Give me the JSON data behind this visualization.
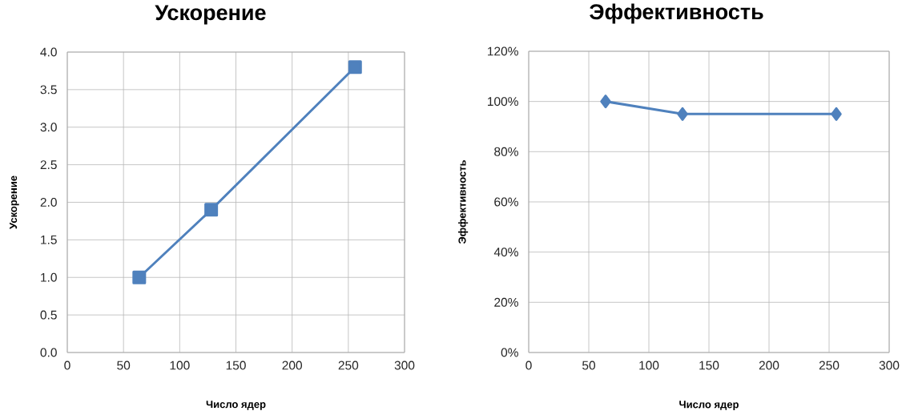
{
  "chart_data": [
    {
      "type": "line",
      "title": "Ускорение",
      "xlabel": "Число ядер",
      "ylabel": "Ускорение",
      "x": [
        64,
        128,
        256
      ],
      "series": [
        {
          "color": "#4f81bd",
          "values": [
            1.0,
            1.9,
            3.8
          ]
        }
      ],
      "xlim": [
        0,
        300
      ],
      "xticks": [
        0,
        50,
        100,
        150,
        200,
        250,
        300
      ],
      "ylim": [
        0,
        4
      ],
      "yticks": [
        {
          "value": 0,
          "label": "0.0"
        },
        {
          "value": 0.5,
          "label": "0.5"
        },
        {
          "value": 1,
          "label": "1.0"
        },
        {
          "value": 1.5,
          "label": "1.5"
        },
        {
          "value": 2,
          "label": "2.0"
        },
        {
          "value": 2.5,
          "label": "2.5"
        },
        {
          "value": 3,
          "label": "3.0"
        },
        {
          "value": 3.5,
          "label": "3.5"
        },
        {
          "value": 4,
          "label": "4.0"
        }
      ],
      "grid": true,
      "marker": "square",
      "line_style": "solid"
    },
    {
      "type": "line",
      "title": "Эффективность",
      "xlabel": "Число ядер",
      "ylabel": "Эффективность",
      "x": [
        64,
        128,
        256
      ],
      "series": [
        {
          "color": "#4f81bd",
          "values": [
            100,
            95,
            95
          ]
        }
      ],
      "xlim": [
        0,
        300
      ],
      "xticks": [
        0,
        50,
        100,
        150,
        200,
        250,
        300
      ],
      "ylim": [
        0,
        120
      ],
      "yticks": [
        {
          "value": 0,
          "label": "0%"
        },
        {
          "value": 20,
          "label": "20%"
        },
        {
          "value": 40,
          "label": "40%"
        },
        {
          "value": 60,
          "label": "60%"
        },
        {
          "value": 80,
          "label": "80%"
        },
        {
          "value": 100,
          "label": "100%"
        },
        {
          "value": 120,
          "label": "120%"
        }
      ],
      "grid": true,
      "marker": "diamond",
      "line_style": "solid"
    }
  ]
}
